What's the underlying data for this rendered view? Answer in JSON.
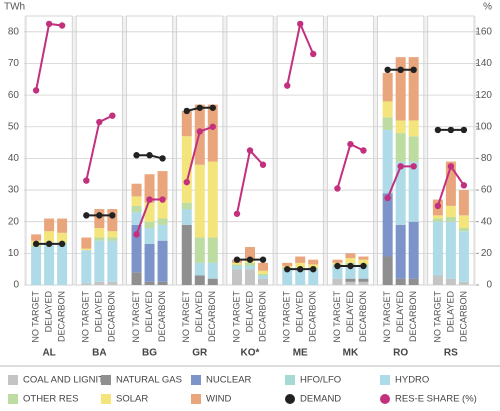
{
  "chart_data": {
    "type": "bar",
    "y_label": "TWh",
    "y2_label": "%",
    "groups": [
      "AL",
      "BA",
      "BG",
      "GR",
      "KO*",
      "ME",
      "MK",
      "RO",
      "RS"
    ],
    "categories": [
      "NO TARGET",
      "DELAYED",
      "DECARBON",
      "NO TARGET",
      "DELAYED",
      "DECARBON",
      "NO TARGET",
      "DELAYED",
      "DECARBON",
      "NO TARGET",
      "DELAYED",
      "DECARBON",
      "NO TARGET",
      "DELAYED",
      "DECARBON",
      "NO TARGET",
      "DELAYED",
      "DECARBON",
      "NO TARGET",
      "DELAYED",
      "DECARBON",
      "NO TARGET",
      "DELAYED",
      "DECARBON",
      "NO TARGET",
      "DELAYED",
      "DECARBON"
    ],
    "ylim": [
      0,
      85
    ],
    "yticks": [
      0,
      10,
      20,
      30,
      40,
      50,
      60,
      70,
      80
    ],
    "y2lim": [
      0,
      170
    ],
    "y2ticks": [
      0,
      20,
      40,
      60,
      80,
      100,
      120,
      140,
      160
    ],
    "grid": true,
    "series": [
      {
        "name": "COAL AND LIGNITE",
        "type": "bar",
        "color": "#c4c4c4",
        "values": [
          0,
          0,
          0,
          0.5,
          1,
          1,
          0,
          0,
          0,
          0,
          0,
          0,
          5,
          5,
          2,
          0,
          0,
          0,
          2,
          1,
          1,
          0,
          0,
          0,
          3,
          2,
          1
        ]
      },
      {
        "name": "NATURAL GAS",
        "type": "bar",
        "color": "#8f8f8f",
        "values": [
          0,
          0,
          0,
          0,
          0,
          0,
          4,
          1,
          1,
          19,
          3,
          2,
          0,
          0,
          0,
          0,
          0,
          0,
          0,
          1,
          1,
          9,
          2,
          2,
          0,
          0,
          0
        ]
      },
      {
        "name": "NUCLEAR",
        "type": "bar",
        "color": "#7d94cb",
        "values": [
          0,
          0,
          0,
          0,
          0,
          0,
          15,
          12,
          13,
          0,
          0,
          0,
          0,
          0,
          0,
          0,
          0,
          0,
          0,
          0,
          0,
          20,
          17,
          18,
          0,
          0,
          0
        ]
      },
      {
        "name": "HFO/LFO",
        "type": "bar",
        "color": "#a6d9d3",
        "values": [
          0,
          0,
          0,
          0,
          0,
          0,
          0,
          0,
          0,
          0,
          0,
          0,
          0,
          0,
          0,
          0,
          0,
          0,
          0,
          0,
          0,
          0,
          0,
          0,
          0,
          0,
          0
        ]
      },
      {
        "name": "HYDRO",
        "type": "bar",
        "color": "#aedbe7",
        "values": [
          12,
          13,
          13,
          10.5,
          13,
          13,
          4,
          5,
          5,
          5,
          4,
          5,
          1,
          1,
          1,
          5,
          5,
          5,
          4,
          4,
          4,
          20,
          20,
          19,
          17,
          18,
          16
        ]
      },
      {
        "name": "OTHER RES",
        "type": "bar",
        "color": "#bcdca2",
        "values": [
          0.5,
          0.5,
          0.5,
          0,
          1,
          1,
          2,
          2,
          2,
          2,
          8,
          8,
          0.5,
          1,
          0.5,
          0.5,
          0.5,
          0.5,
          0.5,
          1,
          0.5,
          4,
          9,
          8,
          1,
          1.5,
          1
        ]
      },
      {
        "name": "SOLAR",
        "type": "bar",
        "color": "#f3e47c",
        "values": [
          1.5,
          3.5,
          3,
          0.5,
          3,
          2,
          3,
          6,
          6,
          21,
          23,
          24,
          0.5,
          1,
          1,
          0.5,
          1.5,
          1,
          0.5,
          1.5,
          1.5,
          5,
          4,
          5,
          1,
          3.5,
          4
        ]
      },
      {
        "name": "WIND",
        "type": "bar",
        "color": "#e9a67c",
        "values": [
          2,
          4,
          4.5,
          3.5,
          6,
          7,
          4,
          9,
          9,
          8,
          19,
          18,
          1,
          4,
          2.5,
          1,
          2,
          1.5,
          1,
          1.5,
          1,
          9,
          20,
          20,
          5,
          14,
          8
        ]
      },
      {
        "name": "DEMAND",
        "type": "line",
        "color": "#222222",
        "values": [
          13,
          13,
          13,
          22,
          22,
          22,
          41,
          41,
          40,
          55,
          56,
          56,
          8,
          8,
          8,
          5,
          5,
          5,
          6,
          6,
          6,
          68,
          68,
          68,
          49,
          49,
          49
        ]
      },
      {
        "name": "RES-E SHARE (%)",
        "type": "line",
        "axis": "y2",
        "color": "#c2307e",
        "values": [
          123,
          165,
          164,
          66,
          103,
          107,
          32,
          54,
          54,
          65,
          97,
          100,
          45,
          85,
          76,
          126,
          165,
          146,
          61,
          89,
          85,
          55,
          75,
          75,
          50,
          75,
          63
        ]
      }
    ]
  }
}
